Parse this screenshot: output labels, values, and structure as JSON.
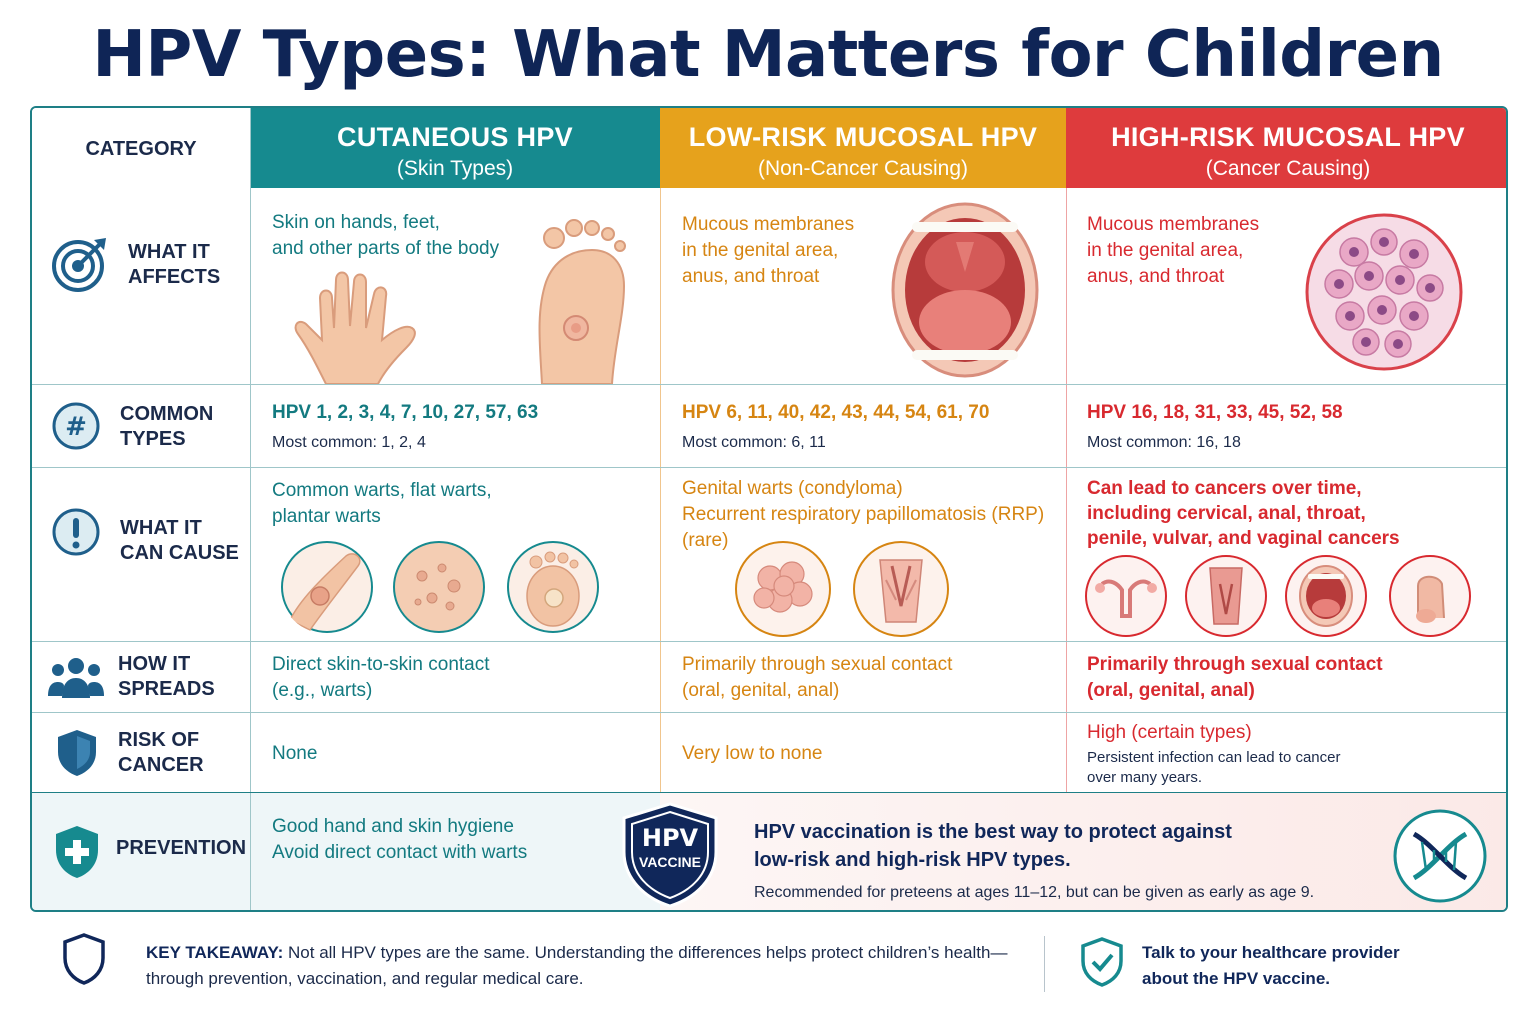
{
  "title": "HPV Types: What Matters for Children",
  "header": {
    "category": "CATEGORY",
    "cols": [
      {
        "title": "CUTANEOUS HPV",
        "subtitle": "(Skin Types)"
      },
      {
        "title": "LOW-RISK MUCOSAL HPV",
        "subtitle": "(Non-Cancer Causing)"
      },
      {
        "title": "HIGH-RISK MUCOSAL HPV",
        "subtitle": "(Cancer Causing)"
      }
    ]
  },
  "rows": {
    "affects": {
      "label_1": "WHAT IT",
      "label_2": "AFFECTS",
      "icon": "target-icon",
      "cutaneous": [
        "Skin on hands, feet,",
        "and other parts of the body"
      ],
      "low": [
        "Mucous membranes",
        "in the genital area,",
        "anus, and throat"
      ],
      "high": [
        "Mucous membranes",
        "in the genital area,",
        "anus, and throat"
      ]
    },
    "types": {
      "label_1": "COMMON",
      "label_2": "TYPES",
      "icon": "hash-icon",
      "cutaneous": {
        "list": "HPV 1, 2, 3, 4, 7, 10, 27, 57, 63",
        "common": "Most common: 1, 2, 4"
      },
      "low": {
        "list": "HPV 6, 11, 40, 42, 43, 44, 54, 61, 70",
        "common": "Most common: 6, 11"
      },
      "high": {
        "list": "HPV 16, 18, 31, 33, 45, 52, 58",
        "common": "Most common: 16, 18"
      }
    },
    "cause": {
      "label_1": "WHAT IT",
      "label_2": "CAN CAUSE",
      "icon": "exclamation-icon",
      "cutaneous": [
        "Common warts, flat warts,",
        "plantar warts"
      ],
      "low": [
        "Genital warts (condyloma)",
        "Recurrent respiratory papillomatosis (RRP)",
        "(rare)"
      ],
      "high": [
        "Can lead to cancers over time,",
        "including cervical, anal, throat,",
        "penile, vulvar, and vaginal cancers"
      ]
    },
    "spreads": {
      "label_1": "HOW IT",
      "label_2": "SPREADS",
      "icon": "people-icon",
      "cutaneous": [
        "Direct skin-to-skin contact",
        "(e.g., warts)"
      ],
      "low": [
        "Primarily through sexual contact",
        "(oral, genital, anal)"
      ],
      "high": [
        "Primarily through sexual contact",
        "(oral, genital, anal)"
      ]
    },
    "risk": {
      "label_1": "RISK OF",
      "label_2": "CANCER",
      "icon": "shield-icon",
      "cutaneous": "None",
      "low": "Very low to none",
      "high": {
        "level": "High (certain types)",
        "note_1": "Persistent infection can lead to cancer",
        "note_2": "over many years."
      }
    },
    "prevention": {
      "label": "PREVENTION",
      "icon": "medical-shield-icon",
      "cutaneous": [
        "Good hand and skin hygiene",
        "Avoid direct contact with warts"
      ],
      "badge_1": "HPV",
      "badge_2": "VACCINE",
      "vaccine_1": "HPV vaccination is the best way to protect against",
      "vaccine_2": "low-risk and high-risk HPV types.",
      "vaccine_note": "Recommended for preteens at ages 11–12, but can be given as early as age 9.",
      "dna_icon": "dna-icon"
    }
  },
  "footer": {
    "takeaway_label": "KEY TAKEAWAY:",
    "takeaway_1": " Not all HPV types are the same. Understanding the differences helps protect children’s health—",
    "takeaway_2": "through prevention, vaccination, and regular medical care.",
    "cta_1": "Talk to your healthcare provider",
    "cta_2": "about the HPV vaccine."
  },
  "colors": {
    "teal": "#137a80",
    "orange": "#d68512",
    "red": "#d8292f",
    "navy": "#0f2556"
  }
}
